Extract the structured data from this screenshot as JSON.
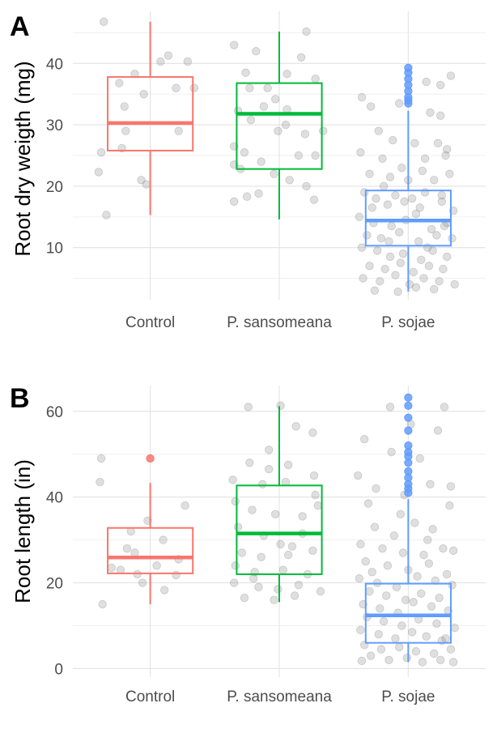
{
  "chart_data": [
    {
      "type": "boxplot",
      "panel_tag": "A",
      "ylabel": "Root dry weigth (mg)",
      "ylim": [
        1.5,
        48.5
      ],
      "yticks": [
        10,
        20,
        30,
        40
      ],
      "grid": true,
      "categories": [
        "Control",
        "P. sansomeana",
        "P. sojae"
      ],
      "colors": [
        "#F8766D",
        "#00BA38",
        "#619CFF"
      ],
      "boxes": [
        {
          "name": "Control",
          "min": 15.3,
          "q1": 25.8,
          "median": 30.3,
          "q3": 37.8,
          "max": 46.8,
          "outliers": []
        },
        {
          "name": "P. sansomeana",
          "min": 14.6,
          "q1": 22.8,
          "median": 31.8,
          "q3": 36.8,
          "max": 45.2,
          "outliers": []
        },
        {
          "name": "P. sojae",
          "min": 2.8,
          "q1": 10.3,
          "median": 14.4,
          "q3": 19.3,
          "max": 32.3,
          "outliers": [
            33.5,
            34.0,
            34.5,
            35.5,
            36.5,
            37.5,
            38.5,
            39.3
          ]
        }
      ],
      "jitter_points": [
        [
          0.64,
          46.8
        ],
        [
          0.88,
          38.3
        ],
        [
          0.76,
          36.8
        ],
        [
          1.08,
          40.3
        ],
        [
          0.8,
          33.0
        ],
        [
          1.14,
          41.3
        ],
        [
          1.29,
          40.3
        ],
        [
          0.95,
          35.0
        ],
        [
          0.62,
          25.5
        ],
        [
          0.78,
          26.2
        ],
        [
          0.6,
          22.3
        ],
        [
          0.81,
          29.0
        ],
        [
          0.93,
          21.0
        ],
        [
          0.97,
          20.3
        ],
        [
          1.22,
          29.0
        ],
        [
          0.66,
          15.3
        ],
        [
          1.2,
          36.0
        ],
        [
          1.34,
          36.0
        ],
        [
          1.65,
          43.0
        ],
        [
          1.74,
          38.5
        ],
        [
          1.82,
          42.0
        ],
        [
          2.21,
          45.2
        ],
        [
          2.06,
          38.3
        ],
        [
          2.17,
          41.0
        ],
        [
          2.28,
          37.5
        ],
        [
          1.68,
          32.3
        ],
        [
          1.88,
          33.0
        ],
        [
          2.06,
          32.5
        ],
        [
          1.97,
          34.2
        ],
        [
          1.78,
          30.8
        ],
        [
          2.05,
          30.0
        ],
        [
          2.2,
          28.5
        ],
        [
          1.65,
          26.5
        ],
        [
          1.73,
          25.5
        ],
        [
          1.86,
          24.0
        ],
        [
          2.15,
          25.0
        ],
        [
          2.28,
          25.0
        ],
        [
          1.65,
          23.5
        ],
        [
          1.96,
          22.0
        ],
        [
          2.08,
          21.0
        ],
        [
          2.21,
          20.0
        ],
        [
          1.75,
          18.3
        ],
        [
          1.84,
          18.8
        ],
        [
          1.65,
          17.5
        ],
        [
          2.27,
          17.8
        ],
        [
          1.7,
          22.8
        ],
        [
          1.99,
          29.0
        ],
        [
          2.34,
          29.0
        ],
        [
          1.91,
          36.0
        ],
        [
          1.77,
          36.0
        ],
        [
          2.64,
          34.5
        ],
        [
          2.71,
          33.0
        ],
        [
          2.93,
          33.5
        ],
        [
          3.17,
          32.0
        ],
        [
          3.25,
          36.5
        ],
        [
          3.33,
          38.0
        ],
        [
          3.14,
          37.0
        ],
        [
          3.25,
          31.5
        ],
        [
          2.77,
          29.0
        ],
        [
          2.88,
          27.5
        ],
        [
          3.05,
          27.0
        ],
        [
          3.23,
          27.0
        ],
        [
          3.3,
          26.0
        ],
        [
          2.63,
          25.5
        ],
        [
          2.8,
          24.5
        ],
        [
          2.95,
          23.0
        ],
        [
          3.13,
          24.5
        ],
        [
          3.29,
          25.0
        ],
        [
          2.7,
          22.0
        ],
        [
          3.0,
          21.0
        ],
        [
          3.2,
          21.0
        ],
        [
          3.32,
          22.0
        ],
        [
          2.66,
          19.0
        ],
        [
          2.75,
          18.0
        ],
        [
          2.84,
          17.0
        ],
        [
          2.9,
          18.5
        ],
        [
          3.03,
          18.0
        ],
        [
          3.13,
          19.0
        ],
        [
          3.26,
          17.5
        ],
        [
          3.35,
          16.0
        ],
        [
          2.62,
          15.0
        ],
        [
          2.73,
          14.0
        ],
        [
          2.87,
          13.5
        ],
        [
          2.98,
          14.5
        ],
        [
          3.06,
          15.5
        ],
        [
          3.18,
          13.0
        ],
        [
          3.3,
          14.0
        ],
        [
          2.68,
          12.0
        ],
        [
          2.79,
          11.5
        ],
        [
          2.93,
          12.5
        ],
        [
          3.08,
          11.0
        ],
        [
          3.22,
          12.0
        ],
        [
          3.34,
          11.5
        ],
        [
          2.64,
          10.0
        ],
        [
          2.76,
          9.5
        ],
        [
          2.86,
          8.5
        ],
        [
          2.96,
          9.0
        ],
        [
          3.1,
          8.0
        ],
        [
          3.19,
          9.5
        ],
        [
          3.3,
          8.5
        ],
        [
          2.7,
          7.0
        ],
        [
          2.82,
          6.5
        ],
        [
          2.94,
          7.5
        ],
        [
          3.04,
          6.0
        ],
        [
          3.16,
          7.0
        ],
        [
          3.27,
          6.5
        ],
        [
          2.65,
          5.0
        ],
        [
          2.78,
          4.5
        ],
        [
          2.9,
          5.5
        ],
        [
          3.01,
          4.0
        ],
        [
          3.12,
          5.0
        ],
        [
          3.24,
          4.5
        ],
        [
          3.36,
          4.0
        ],
        [
          2.74,
          3.0
        ],
        [
          2.92,
          2.8
        ],
        [
          3.06,
          3.5
        ],
        [
          3.2,
          3.2
        ],
        [
          2.72,
          16.5
        ],
        [
          2.81,
          20.0
        ],
        [
          2.97,
          17.5
        ],
        [
          3.09,
          16.5
        ],
        [
          3.26,
          18.5
        ],
        [
          3.11,
          22.5
        ],
        [
          2.86,
          21.5
        ],
        [
          2.85,
          11.0
        ],
        [
          3.15,
          10.0
        ],
        [
          3.28,
          13.5
        ]
      ]
    },
    {
      "type": "boxplot",
      "panel_tag": "B",
      "ylabel": "Root length (in)",
      "ylim": [
        -2,
        66
      ],
      "yticks": [
        0,
        20,
        40,
        60
      ],
      "grid": true,
      "categories": [
        "Control",
        "P. sansomeana",
        "P. sojae"
      ],
      "colors": [
        "#F8766D",
        "#00BA38",
        "#619CFF"
      ],
      "boxes": [
        {
          "name": "Control",
          "min": 15.0,
          "q1": 22.2,
          "median": 25.9,
          "q3": 32.8,
          "max": 43.3,
          "outliers": [
            49.0
          ]
        },
        {
          "name": "P. sansomeana",
          "min": 15.5,
          "q1": 22.0,
          "median": 31.5,
          "q3": 42.7,
          "max": 61.2,
          "outliers": []
        },
        {
          "name": "P. sojae",
          "min": 1.5,
          "q1": 6.0,
          "median": 12.4,
          "q3": 19.8,
          "max": 39.5,
          "outliers": [
            41,
            42,
            43,
            44.5,
            46,
            48,
            49.5,
            50.5,
            52,
            55.5,
            58.5,
            61.3,
            63.2
          ]
        }
      ],
      "jitter_points": [
        [
          0.62,
          49.0
        ],
        [
          0.61,
          43.5
        ],
        [
          1.27,
          38.0
        ],
        [
          0.98,
          34.5
        ],
        [
          0.85,
          32.0
        ],
        [
          1.1,
          30.0
        ],
        [
          0.82,
          28.0
        ],
        [
          1.22,
          25.5
        ],
        [
          0.7,
          23.5
        ],
        [
          0.77,
          23.0
        ],
        [
          0.9,
          22.0
        ],
        [
          1.2,
          21.8
        ],
        [
          0.94,
          20.0
        ],
        [
          1.11,
          18.3
        ],
        [
          0.63,
          15.0
        ],
        [
          0.88,
          27.0
        ],
        [
          1.05,
          24.0
        ],
        [
          1.76,
          61.0
        ],
        [
          2.01,
          61.3
        ],
        [
          2.13,
          56.5
        ],
        [
          1.92,
          51.0
        ],
        [
          2.26,
          55.0
        ],
        [
          1.77,
          48.0
        ],
        [
          1.92,
          46.5
        ],
        [
          2.07,
          47.5
        ],
        [
          2.27,
          45.0
        ],
        [
          1.64,
          44.0
        ],
        [
          1.87,
          43.0
        ],
        [
          2.05,
          43.5
        ],
        [
          2.28,
          40.5
        ],
        [
          1.66,
          39.0
        ],
        [
          1.79,
          37.0
        ],
        [
          1.97,
          36.0
        ],
        [
          2.18,
          35.5
        ],
        [
          2.3,
          38.0
        ],
        [
          1.68,
          33.0
        ],
        [
          1.88,
          31.0
        ],
        [
          2.01,
          29.0
        ],
        [
          2.18,
          31.5
        ],
        [
          1.71,
          27.0
        ],
        [
          1.86,
          26.0
        ],
        [
          2.07,
          26.5
        ],
        [
          2.26,
          27.5
        ],
        [
          1.66,
          24.0
        ],
        [
          1.81,
          22.5
        ],
        [
          2.03,
          23.0
        ],
        [
          2.22,
          22.0
        ],
        [
          1.65,
          20.0
        ],
        [
          1.84,
          19.0
        ],
        [
          1.99,
          18.5
        ],
        [
          2.15,
          19.5
        ],
        [
          2.32,
          18.0
        ],
        [
          1.73,
          16.5
        ],
        [
          1.96,
          16.0
        ],
        [
          2.12,
          17.0
        ],
        [
          1.8,
          21.0
        ],
        [
          2.1,
          28.5
        ],
        [
          2.86,
          61.0
        ],
        [
          3.28,
          61.0
        ],
        [
          3.02,
          57.0
        ],
        [
          2.66,
          53.5
        ],
        [
          3.23,
          55.5
        ],
        [
          2.87,
          50.5
        ],
        [
          3.09,
          49.0
        ],
        [
          2.61,
          45.0
        ],
        [
          2.75,
          42.0
        ],
        [
          2.97,
          40.5
        ],
        [
          3.17,
          43.0
        ],
        [
          3.33,
          42.5
        ],
        [
          2.69,
          38.5
        ],
        [
          2.94,
          36.0
        ],
        [
          3.32,
          38.0
        ],
        [
          2.74,
          33.0
        ],
        [
          2.89,
          31.0
        ],
        [
          3.05,
          34.0
        ],
        [
          3.19,
          32.5
        ],
        [
          2.63,
          29.0
        ],
        [
          2.8,
          28.0
        ],
        [
          2.96,
          27.0
        ],
        [
          3.12,
          26.5
        ],
        [
          3.27,
          28.0
        ],
        [
          3.35,
          27.5
        ],
        [
          2.67,
          25.0
        ],
        [
          2.84,
          24.0
        ],
        [
          3.0,
          23.0
        ],
        [
          3.16,
          24.5
        ],
        [
          3.3,
          22.0
        ],
        [
          2.62,
          21.0
        ],
        [
          2.76,
          20.0
        ],
        [
          2.91,
          19.0
        ],
        [
          3.07,
          21.5
        ],
        [
          3.21,
          20.5
        ],
        [
          3.34,
          19.5
        ],
        [
          2.7,
          18.0
        ],
        [
          2.83,
          17.0
        ],
        [
          2.98,
          16.0
        ],
        [
          3.1,
          17.5
        ],
        [
          3.24,
          16.5
        ],
        [
          2.65,
          15.0
        ],
        [
          2.78,
          14.0
        ],
        [
          2.92,
          13.0
        ],
        [
          3.04,
          15.5
        ],
        [
          3.18,
          14.5
        ],
        [
          3.31,
          13.5
        ],
        [
          2.68,
          12.0
        ],
        [
          2.81,
          11.0
        ],
        [
          2.95,
          10.0
        ],
        [
          3.08,
          11.5
        ],
        [
          3.22,
          10.5
        ],
        [
          3.36,
          9.5
        ],
        [
          2.63,
          9.0
        ],
        [
          2.77,
          8.0
        ],
        [
          2.9,
          7.0
        ],
        [
          3.03,
          8.5
        ],
        [
          3.14,
          7.5
        ],
        [
          3.26,
          6.5
        ],
        [
          2.66,
          5.5
        ],
        [
          2.79,
          4.5
        ],
        [
          2.93,
          5.0
        ],
        [
          3.06,
          4.0
        ],
        [
          3.2,
          3.5
        ],
        [
          3.33,
          4.5
        ],
        [
          2.71,
          3.0
        ],
        [
          2.85,
          2.0
        ],
        [
          2.99,
          2.5
        ],
        [
          3.11,
          1.5
        ],
        [
          3.25,
          2.0
        ],
        [
          3.35,
          1.5
        ],
        [
          2.64,
          1.8
        ],
        [
          3.29,
          7.0
        ],
        [
          2.72,
          22.5
        ],
        [
          3.15,
          30.0
        ]
      ]
    }
  ]
}
